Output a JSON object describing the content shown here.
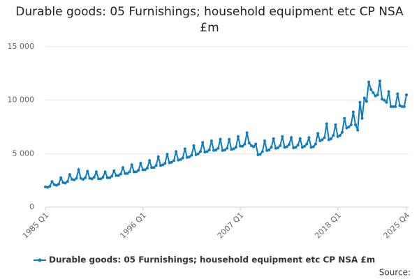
{
  "chart_data": {
    "type": "line",
    "title": "Durable goods: 05 Furnishings; household equipment etc CP NSA £m",
    "source": "Source:",
    "categories": [
      "1985 Q1",
      null,
      null,
      null,
      null,
      null,
      null,
      null,
      null,
      null,
      null,
      null,
      null,
      null,
      null,
      null,
      null,
      null,
      null,
      null,
      null,
      null,
      null,
      null,
      null,
      null,
      null,
      null,
      null,
      null,
      null,
      null,
      null,
      null,
      null,
      null,
      null,
      null,
      null,
      null,
      null,
      null,
      null,
      null,
      "1996 Q1",
      null,
      null,
      null,
      null,
      null,
      null,
      null,
      null,
      null,
      null,
      null,
      null,
      null,
      null,
      null,
      null,
      null,
      null,
      null,
      null,
      null,
      null,
      null,
      null,
      null,
      null,
      null,
      null,
      null,
      null,
      null,
      null,
      null,
      null,
      null,
      null,
      null,
      null,
      null,
      null,
      null,
      null,
      null,
      "2007 Q1",
      null,
      null,
      null,
      null,
      null,
      null,
      null,
      null,
      null,
      null,
      null,
      null,
      null,
      null,
      null,
      null,
      null,
      null,
      null,
      null,
      null,
      null,
      null,
      null,
      null,
      null,
      null,
      null,
      null,
      null,
      null,
      null,
      null,
      null,
      null,
      null,
      null,
      null,
      null,
      null,
      null,
      null,
      null,
      "2018 Q1",
      null,
      null,
      null,
      null,
      null,
      null,
      null,
      null,
      null,
      null,
      null,
      null,
      null,
      null,
      null,
      null,
      null,
      null,
      null,
      null,
      null,
      null,
      null,
      null,
      null,
      null,
      null,
      null,
      null,
      null,
      "2025 Q4"
    ],
    "series": [
      {
        "name": "Durable goods: 05 Furnishings; household equipment etc CP NSA £m",
        "color": "#0f7cbf",
        "values": [
          1900,
          1850,
          1950,
          2400,
          2100,
          2050,
          2150,
          2750,
          2300,
          2250,
          2400,
          3050,
          2600,
          2550,
          2700,
          3500,
          2700,
          2600,
          2750,
          3350,
          2700,
          2650,
          2800,
          3300,
          2650,
          2650,
          2800,
          3300,
          2750,
          2750,
          2900,
          3400,
          2950,
          2950,
          3100,
          3700,
          3150,
          3150,
          3300,
          3950,
          3300,
          3300,
          3450,
          4100,
          3500,
          3500,
          3650,
          4350,
          3700,
          3700,
          3900,
          4700,
          3900,
          3950,
          4100,
          4950,
          4150,
          4200,
          4350,
          5200,
          4400,
          4450,
          4600,
          5450,
          4650,
          4700,
          4850,
          5750,
          4900,
          5000,
          5200,
          6050,
          5150,
          5200,
          5350,
          6200,
          5300,
          5350,
          5500,
          6350,
          5300,
          5350,
          5500,
          6350,
          5400,
          5450,
          5600,
          6600,
          5700,
          5700,
          5900,
          6950,
          6000,
          5750,
          5650,
          5900,
          4900,
          4950,
          5200,
          6200,
          5300,
          5350,
          5600,
          6400,
          5500,
          5550,
          5750,
          6600,
          5600,
          5650,
          5850,
          6500,
          5550,
          5600,
          5800,
          6400,
          5600,
          5700,
          5900,
          6500,
          5600,
          5650,
          5900,
          6900,
          6200,
          6300,
          6500,
          7800,
          6300,
          6400,
          6700,
          7700,
          6600,
          6700,
          7000,
          8300,
          7400,
          7500,
          7700,
          8900,
          7700,
          7200,
          9800,
          8300,
          10200,
          9900,
          11700,
          11000,
          10700,
          10400,
          10500,
          11800,
          10100,
          10000,
          9800,
          10800,
          9400,
          9400,
          9400,
          10600,
          9500,
          9400,
          9400,
          10500
        ]
      }
    ],
    "ylim": [
      0,
      15000
    ],
    "yticks": [
      0,
      {
        "value": 5000,
        "label": "5 000"
      },
      {
        "value": 10000,
        "label": "10 000"
      },
      {
        "value": 15000,
        "label": "15 000"
      }
    ],
    "grid": true
  }
}
